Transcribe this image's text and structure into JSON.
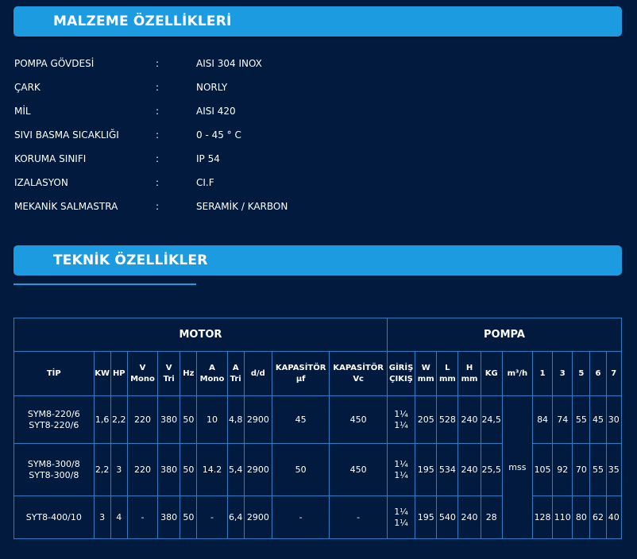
{
  "material": {
    "title": "MALZEME ÖZELLİKLERİ",
    "separator": ":",
    "rows": [
      {
        "key": "POMPA GÖVDESİ",
        "value": "AISI 304 INOX"
      },
      {
        "key": "ÇARK",
        "value": "NORLY"
      },
      {
        "key": "MİL",
        "value": "AISI 420"
      },
      {
        "key": "SIVI BASMA SICAKLIĞI",
        "value": "0 - 45 ° C"
      },
      {
        "key": "KORUMA SINIFI",
        "value": "IP 54"
      },
      {
        "key": "IZALASYON",
        "value": "CI.F"
      },
      {
        "key": "MEKANİK SALMASTRA",
        "value": "SERAMİK / KARBON"
      }
    ]
  },
  "technical": {
    "title": "TEKNİK ÖZELLİKLER",
    "groups": {
      "motor": "MOTOR",
      "pompa": "POMPA"
    },
    "headers": {
      "tip": "TİP",
      "kw": "KW",
      "hp": "HP",
      "v_mono": [
        "V",
        "Mono"
      ],
      "v_tri": [
        "V",
        "Tri"
      ],
      "hz": "Hz",
      "a_mono": [
        "A",
        "Mono"
      ],
      "a_tri": [
        "A",
        "Tri"
      ],
      "dd": "d/d",
      "kap_uf": [
        "KAPASİTÖR",
        "µf"
      ],
      "kap_vc": [
        "KAPASİTÖR",
        "Vc"
      ],
      "giris": [
        "GİRİŞ",
        "ÇIKIŞ"
      ],
      "w": [
        "W",
        "mm"
      ],
      "l": [
        "L",
        "mm"
      ],
      "h": [
        "H",
        "mm"
      ],
      "kg": "KG",
      "m3h": "m³/h",
      "q1": "1",
      "q3": "3",
      "q5": "5",
      "q6": "6",
      "q7": "7"
    },
    "mss": "mss",
    "rows": [
      {
        "tip": [
          "SYM8-220/6",
          "SYT8-220/6"
        ],
        "kw": "1,6",
        "hp": "2,2",
        "v_mono": "220",
        "v_tri": "380",
        "hz": "50",
        "a_mono": "10",
        "a_tri": "4,8",
        "dd": "2900",
        "kap_uf": "45",
        "kap_vc": "450",
        "giris": [
          "1¼",
          "1¼"
        ],
        "w": "205",
        "l": "528",
        "h": "240",
        "kg": "24,5",
        "q1": "84",
        "q3": "74",
        "q5": "55",
        "q6": "45",
        "q7": "30"
      },
      {
        "tip": [
          "SYM8-300/8",
          "SYT8-300/8"
        ],
        "kw": "2,2",
        "hp": "3",
        "v_mono": "220",
        "v_tri": "380",
        "hz": "50",
        "a_mono": "14.2",
        "a_tri": "5,4",
        "dd": "2900",
        "kap_uf": "50",
        "kap_vc": "450",
        "giris": [
          "1¼",
          "1¼"
        ],
        "w": "195",
        "l": "534",
        "h": "240",
        "kg": "25,5",
        "q1": "105",
        "q3": "92",
        "q5": "70",
        "q6": "55",
        "q7": "35"
      },
      {
        "tip": [
          "SYT8-400/10"
        ],
        "kw": "3",
        "hp": "4",
        "v_mono": "-",
        "v_tri": "380",
        "hz": "50",
        "a_mono": "-",
        "a_tri": "6,4",
        "dd": "2900",
        "kap_uf": "-",
        "kap_vc": "-",
        "giris": [
          "1¼",
          "1¼"
        ],
        "w": "195",
        "l": "540",
        "h": "240",
        "kg": "28",
        "q1": "128",
        "q3": "110",
        "q5": "80",
        "q6": "62",
        "q7": "40"
      }
    ]
  },
  "colors": {
    "background": "#021a3d",
    "accent": "#1c9be0",
    "grid": "#2a7fc4"
  }
}
